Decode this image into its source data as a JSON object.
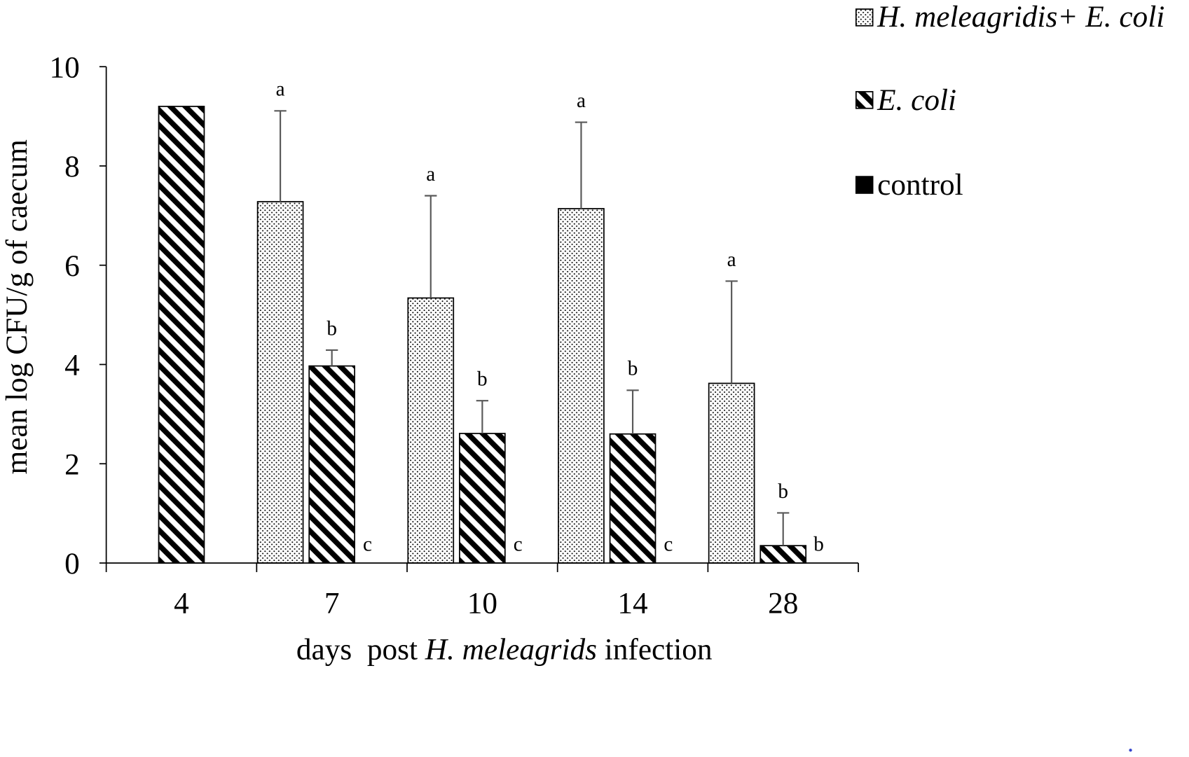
{
  "chart_data": {
    "type": "bar",
    "categories": [
      "4",
      "7",
      "10",
      "14",
      "28"
    ],
    "xlabel": {
      "before": "days  post ",
      "italic": "H. meleagrids",
      "after": " infection"
    },
    "ylabel": "mean log CFU/g of caecum",
    "ylim": [
      0,
      10
    ],
    "yticks": [
      0,
      2,
      4,
      6,
      8,
      10
    ],
    "grid": false,
    "legend": "top-right",
    "errorbar_color": "#595959",
    "series": [
      {
        "name": "H. meleagridis+ E. coli",
        "fill": "dots",
        "color": "#000000",
        "values": [
          null,
          7.28,
          5.34,
          7.14,
          3.62
        ],
        "errors": [
          null,
          1.83,
          2.06,
          1.74,
          2.06
        ],
        "letters": [
          null,
          "a",
          "a",
          "a",
          "a"
        ]
      },
      {
        "name": "E. coli",
        "fill": "diagonal-hatch",
        "color": "#000000",
        "values": [
          9.2,
          3.97,
          2.61,
          2.6,
          0.35
        ],
        "errors": [
          null,
          0.32,
          0.66,
          0.88,
          0.66
        ],
        "letters": [
          null,
          "b",
          "b",
          "b",
          "b"
        ]
      },
      {
        "name": "control",
        "fill": "solid",
        "color": "#000000",
        "values": [
          null,
          0,
          0,
          0,
          0
        ],
        "errors": [
          null,
          null,
          null,
          null,
          null
        ],
        "letters": [
          null,
          "c",
          "c",
          "c",
          "b"
        ]
      }
    ]
  }
}
